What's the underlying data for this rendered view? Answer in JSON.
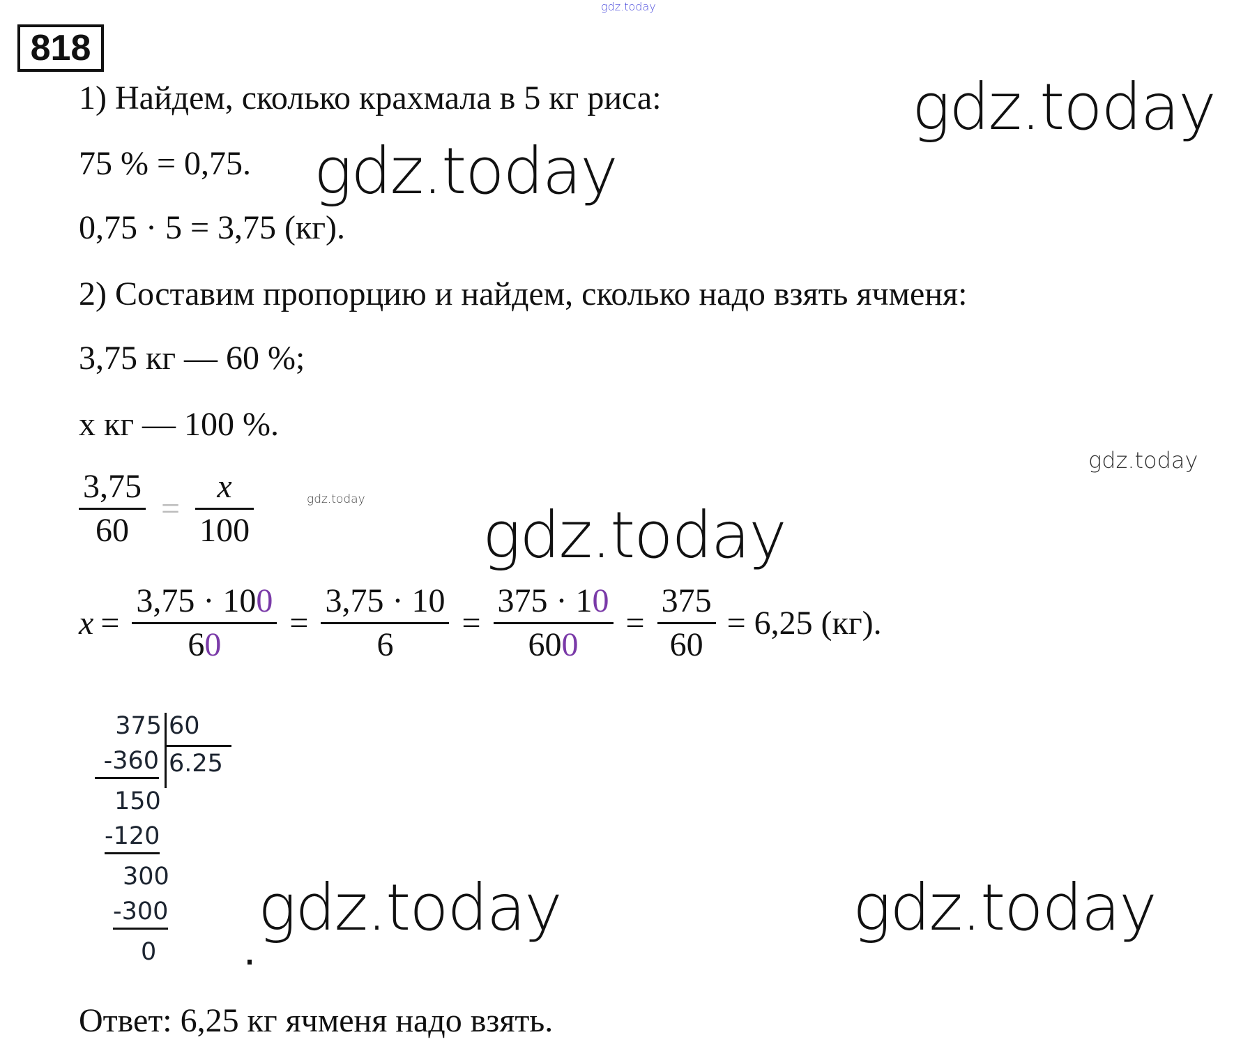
{
  "problem_number": "818",
  "watermarks": {
    "top": "gdz.today",
    "text": "gdz.today"
  },
  "steps": {
    "step1_title": "1) Найдем, сколько крахмала в 5 кг риса:",
    "step1_line1": "75 % = 0,75.",
    "step1_line2": "0,75 · 5 = 3,75 (кг).",
    "step2_title": "2) Составим пропорцию и найдем, сколько надо взять ячменя:",
    "step2_line1": "3,75 кг — 60 %;",
    "step2_line2": "x кг — 100 %."
  },
  "proportion": {
    "left": {
      "num": "3,75",
      "den": "60"
    },
    "eq": "=",
    "right": {
      "num": "x",
      "den": "100"
    }
  },
  "equation": {
    "x": "x",
    "eq": "=",
    "f1": {
      "num": "3,75 · 10",
      "num_purple": "0",
      "den": "6",
      "den_purple": "0"
    },
    "f2": {
      "num": "3,75 · 10",
      "den": "6"
    },
    "f3": {
      "num": "375 · 1",
      "num_purple": "0",
      "den": "60",
      "den_purple": "0"
    },
    "f4": {
      "num": "375",
      "den": "60"
    },
    "result": "= 6,25 (кг)."
  },
  "long_division": {
    "dividend": "375",
    "divisor": "60",
    "quotient": "6.25",
    "rows": [
      "-360",
      "150",
      "-120",
      "300",
      "-300",
      "0"
    ]
  },
  "answer": "Ответ: 6,25 кг ячменя надо взять.",
  "colors": {
    "accent_purple": "#7a3aa8",
    "watermark_top": "#4b4bdc"
  }
}
